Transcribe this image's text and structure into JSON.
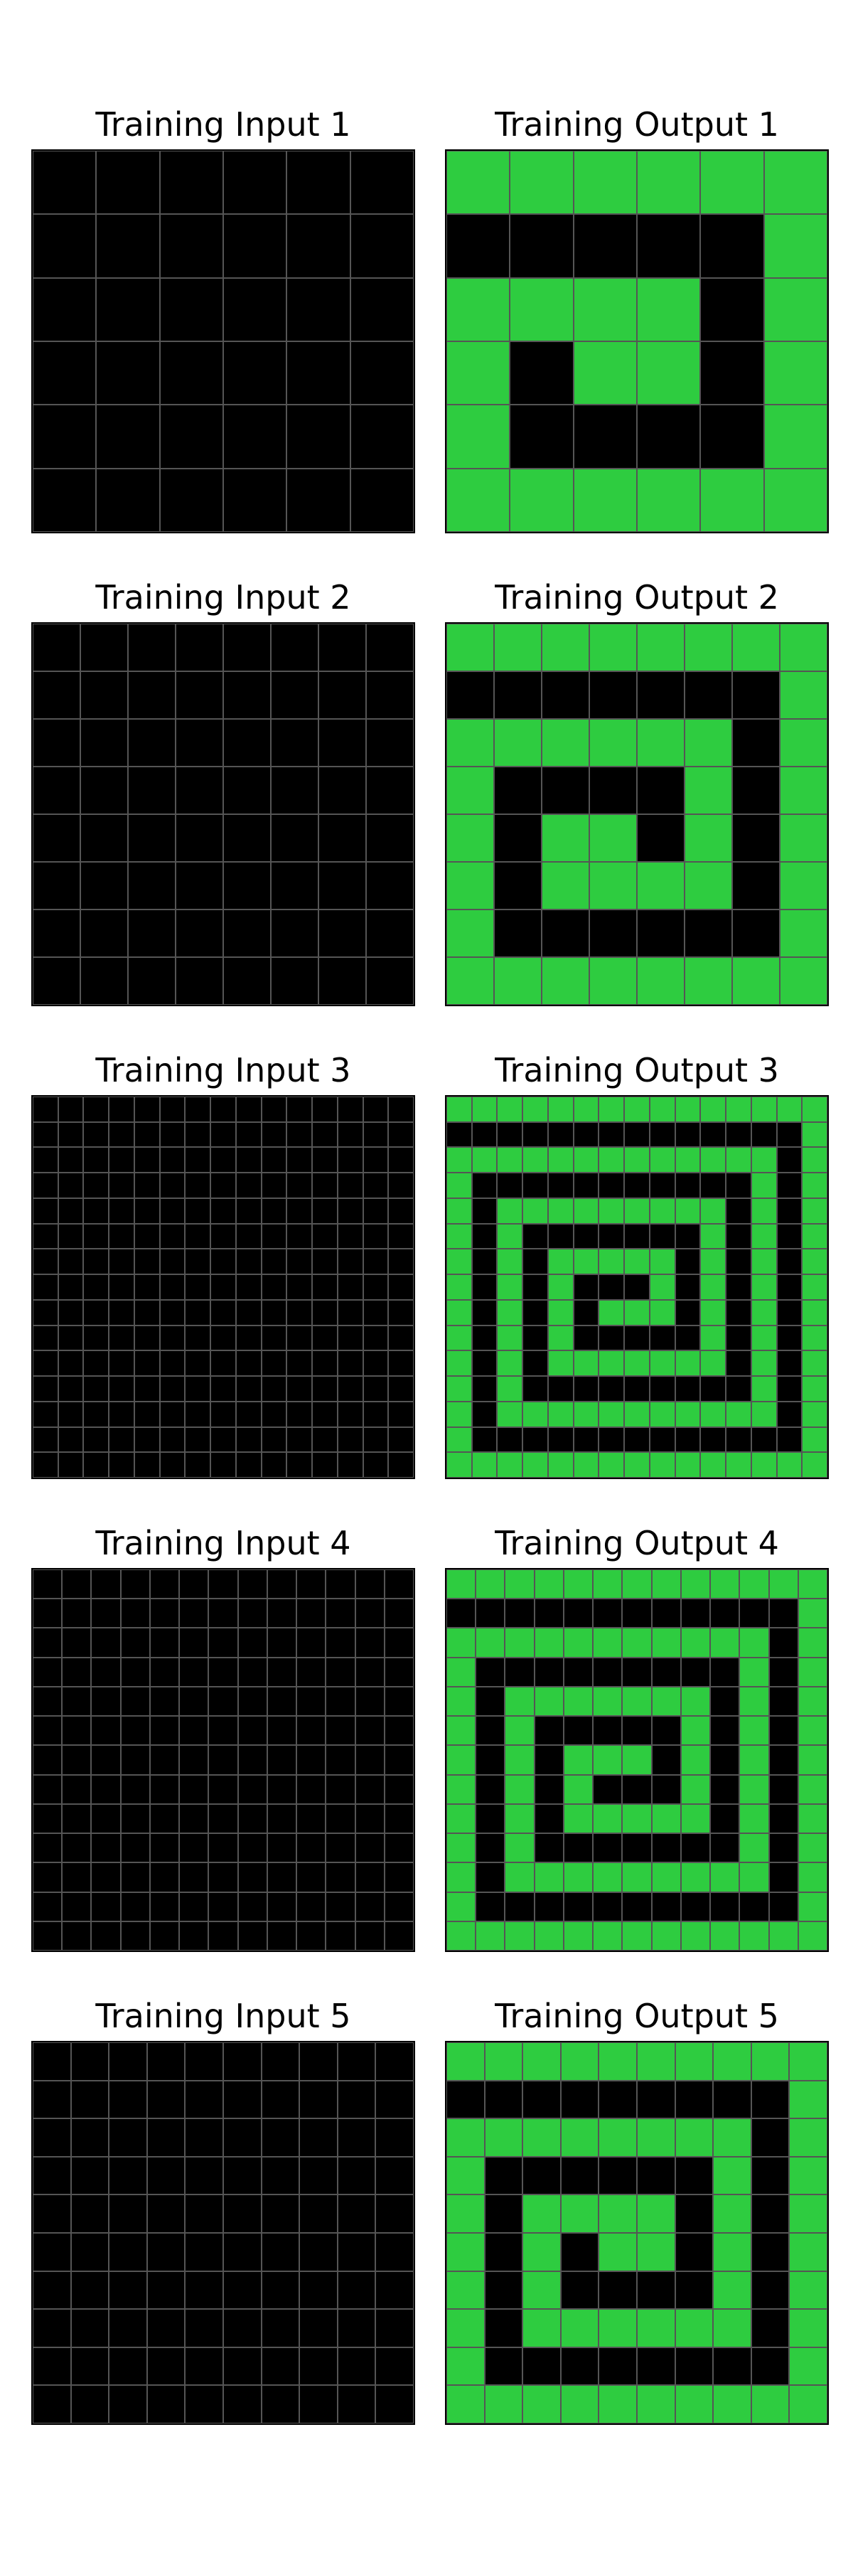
{
  "palette": {
    "0": "#000000",
    "3": "#2ECC40",
    "grid_line": "#555555",
    "frame": "#000000"
  },
  "pairs": [
    {
      "input_title": "Training Input 1",
      "output_title": "Training Output 1",
      "input": [
        [
          0,
          0,
          0,
          0,
          0,
          0
        ],
        [
          0,
          0,
          0,
          0,
          0,
          0
        ],
        [
          0,
          0,
          0,
          0,
          0,
          0
        ],
        [
          0,
          0,
          0,
          0,
          0,
          0
        ],
        [
          0,
          0,
          0,
          0,
          0,
          0
        ],
        [
          0,
          0,
          0,
          0,
          0,
          0
        ]
      ],
      "output": [
        [
          3,
          3,
          3,
          3,
          3,
          3
        ],
        [
          0,
          0,
          0,
          0,
          0,
          3
        ],
        [
          3,
          3,
          3,
          3,
          0,
          3
        ],
        [
          3,
          0,
          3,
          3,
          0,
          3
        ],
        [
          3,
          0,
          0,
          0,
          0,
          3
        ],
        [
          3,
          3,
          3,
          3,
          3,
          3
        ]
      ]
    },
    {
      "input_title": "Training Input 2",
      "output_title": "Training Output 2",
      "input": [
        [
          0,
          0,
          0,
          0,
          0,
          0,
          0,
          0
        ],
        [
          0,
          0,
          0,
          0,
          0,
          0,
          0,
          0
        ],
        [
          0,
          0,
          0,
          0,
          0,
          0,
          0,
          0
        ],
        [
          0,
          0,
          0,
          0,
          0,
          0,
          0,
          0
        ],
        [
          0,
          0,
          0,
          0,
          0,
          0,
          0,
          0
        ],
        [
          0,
          0,
          0,
          0,
          0,
          0,
          0,
          0
        ],
        [
          0,
          0,
          0,
          0,
          0,
          0,
          0,
          0
        ],
        [
          0,
          0,
          0,
          0,
          0,
          0,
          0,
          0
        ]
      ],
      "output": [
        [
          3,
          3,
          3,
          3,
          3,
          3,
          3,
          3
        ],
        [
          0,
          0,
          0,
          0,
          0,
          0,
          0,
          3
        ],
        [
          3,
          3,
          3,
          3,
          3,
          3,
          0,
          3
        ],
        [
          3,
          0,
          0,
          0,
          0,
          3,
          0,
          3
        ],
        [
          3,
          0,
          3,
          3,
          0,
          3,
          0,
          3
        ],
        [
          3,
          0,
          3,
          3,
          3,
          3,
          0,
          3
        ],
        [
          3,
          0,
          0,
          0,
          0,
          0,
          0,
          3
        ],
        [
          3,
          3,
          3,
          3,
          3,
          3,
          3,
          3
        ]
      ]
    },
    {
      "input_title": "Training Input 3",
      "output_title": "Training Output 3",
      "input": [
        [
          0,
          0,
          0,
          0,
          0,
          0,
          0,
          0,
          0,
          0,
          0,
          0,
          0,
          0,
          0
        ],
        [
          0,
          0,
          0,
          0,
          0,
          0,
          0,
          0,
          0,
          0,
          0,
          0,
          0,
          0,
          0
        ],
        [
          0,
          0,
          0,
          0,
          0,
          0,
          0,
          0,
          0,
          0,
          0,
          0,
          0,
          0,
          0
        ],
        [
          0,
          0,
          0,
          0,
          0,
          0,
          0,
          0,
          0,
          0,
          0,
          0,
          0,
          0,
          0
        ],
        [
          0,
          0,
          0,
          0,
          0,
          0,
          0,
          0,
          0,
          0,
          0,
          0,
          0,
          0,
          0
        ],
        [
          0,
          0,
          0,
          0,
          0,
          0,
          0,
          0,
          0,
          0,
          0,
          0,
          0,
          0,
          0
        ],
        [
          0,
          0,
          0,
          0,
          0,
          0,
          0,
          0,
          0,
          0,
          0,
          0,
          0,
          0,
          0
        ],
        [
          0,
          0,
          0,
          0,
          0,
          0,
          0,
          0,
          0,
          0,
          0,
          0,
          0,
          0,
          0
        ],
        [
          0,
          0,
          0,
          0,
          0,
          0,
          0,
          0,
          0,
          0,
          0,
          0,
          0,
          0,
          0
        ],
        [
          0,
          0,
          0,
          0,
          0,
          0,
          0,
          0,
          0,
          0,
          0,
          0,
          0,
          0,
          0
        ],
        [
          0,
          0,
          0,
          0,
          0,
          0,
          0,
          0,
          0,
          0,
          0,
          0,
          0,
          0,
          0
        ],
        [
          0,
          0,
          0,
          0,
          0,
          0,
          0,
          0,
          0,
          0,
          0,
          0,
          0,
          0,
          0
        ],
        [
          0,
          0,
          0,
          0,
          0,
          0,
          0,
          0,
          0,
          0,
          0,
          0,
          0,
          0,
          0
        ],
        [
          0,
          0,
          0,
          0,
          0,
          0,
          0,
          0,
          0,
          0,
          0,
          0,
          0,
          0,
          0
        ],
        [
          0,
          0,
          0,
          0,
          0,
          0,
          0,
          0,
          0,
          0,
          0,
          0,
          0,
          0,
          0
        ]
      ],
      "output": [
        [
          3,
          3,
          3,
          3,
          3,
          3,
          3,
          3,
          3,
          3,
          3,
          3,
          3,
          3,
          3
        ],
        [
          0,
          0,
          0,
          0,
          0,
          0,
          0,
          0,
          0,
          0,
          0,
          0,
          0,
          0,
          3
        ],
        [
          3,
          3,
          3,
          3,
          3,
          3,
          3,
          3,
          3,
          3,
          3,
          3,
          3,
          0,
          3
        ],
        [
          3,
          0,
          0,
          0,
          0,
          0,
          0,
          0,
          0,
          0,
          0,
          0,
          3,
          0,
          3
        ],
        [
          3,
          0,
          3,
          3,
          3,
          3,
          3,
          3,
          3,
          3,
          3,
          0,
          3,
          0,
          3
        ],
        [
          3,
          0,
          3,
          0,
          0,
          0,
          0,
          0,
          0,
          0,
          3,
          0,
          3,
          0,
          3
        ],
        [
          3,
          0,
          3,
          0,
          3,
          3,
          3,
          3,
          3,
          0,
          3,
          0,
          3,
          0,
          3
        ],
        [
          3,
          0,
          3,
          0,
          3,
          0,
          0,
          0,
          3,
          0,
          3,
          0,
          3,
          0,
          3
        ],
        [
          3,
          0,
          3,
          0,
          3,
          0,
          3,
          3,
          3,
          0,
          3,
          0,
          3,
          0,
          3
        ],
        [
          3,
          0,
          3,
          0,
          3,
          0,
          0,
          0,
          0,
          0,
          3,
          0,
          3,
          0,
          3
        ],
        [
          3,
          0,
          3,
          0,
          3,
          3,
          3,
          3,
          3,
          3,
          3,
          0,
          3,
          0,
          3
        ],
        [
          3,
          0,
          3,
          0,
          0,
          0,
          0,
          0,
          0,
          0,
          0,
          0,
          3,
          0,
          3
        ],
        [
          3,
          0,
          3,
          3,
          3,
          3,
          3,
          3,
          3,
          3,
          3,
          3,
          3,
          0,
          3
        ],
        [
          3,
          0,
          0,
          0,
          0,
          0,
          0,
          0,
          0,
          0,
          0,
          0,
          0,
          0,
          3
        ],
        [
          3,
          3,
          3,
          3,
          3,
          3,
          3,
          3,
          3,
          3,
          3,
          3,
          3,
          3,
          3
        ]
      ]
    },
    {
      "input_title": "Training Input 4",
      "output_title": "Training Output 4",
      "input": [
        [
          0,
          0,
          0,
          0,
          0,
          0,
          0,
          0,
          0,
          0,
          0,
          0,
          0
        ],
        [
          0,
          0,
          0,
          0,
          0,
          0,
          0,
          0,
          0,
          0,
          0,
          0,
          0
        ],
        [
          0,
          0,
          0,
          0,
          0,
          0,
          0,
          0,
          0,
          0,
          0,
          0,
          0
        ],
        [
          0,
          0,
          0,
          0,
          0,
          0,
          0,
          0,
          0,
          0,
          0,
          0,
          0
        ],
        [
          0,
          0,
          0,
          0,
          0,
          0,
          0,
          0,
          0,
          0,
          0,
          0,
          0
        ],
        [
          0,
          0,
          0,
          0,
          0,
          0,
          0,
          0,
          0,
          0,
          0,
          0,
          0
        ],
        [
          0,
          0,
          0,
          0,
          0,
          0,
          0,
          0,
          0,
          0,
          0,
          0,
          0
        ],
        [
          0,
          0,
          0,
          0,
          0,
          0,
          0,
          0,
          0,
          0,
          0,
          0,
          0
        ],
        [
          0,
          0,
          0,
          0,
          0,
          0,
          0,
          0,
          0,
          0,
          0,
          0,
          0
        ],
        [
          0,
          0,
          0,
          0,
          0,
          0,
          0,
          0,
          0,
          0,
          0,
          0,
          0
        ],
        [
          0,
          0,
          0,
          0,
          0,
          0,
          0,
          0,
          0,
          0,
          0,
          0,
          0
        ],
        [
          0,
          0,
          0,
          0,
          0,
          0,
          0,
          0,
          0,
          0,
          0,
          0,
          0
        ],
        [
          0,
          0,
          0,
          0,
          0,
          0,
          0,
          0,
          0,
          0,
          0,
          0,
          0
        ]
      ],
      "output": [
        [
          3,
          3,
          3,
          3,
          3,
          3,
          3,
          3,
          3,
          3,
          3,
          3,
          3
        ],
        [
          0,
          0,
          0,
          0,
          0,
          0,
          0,
          0,
          0,
          0,
          0,
          0,
          3
        ],
        [
          3,
          3,
          3,
          3,
          3,
          3,
          3,
          3,
          3,
          3,
          3,
          0,
          3
        ],
        [
          3,
          0,
          0,
          0,
          0,
          0,
          0,
          0,
          0,
          0,
          3,
          0,
          3
        ],
        [
          3,
          0,
          3,
          3,
          3,
          3,
          3,
          3,
          3,
          0,
          3,
          0,
          3
        ],
        [
          3,
          0,
          3,
          0,
          0,
          0,
          0,
          0,
          3,
          0,
          3,
          0,
          3
        ],
        [
          3,
          0,
          3,
          0,
          3,
          3,
          3,
          0,
          3,
          0,
          3,
          0,
          3
        ],
        [
          3,
          0,
          3,
          0,
          3,
          0,
          0,
          0,
          3,
          0,
          3,
          0,
          3
        ],
        [
          3,
          0,
          3,
          0,
          3,
          3,
          3,
          3,
          3,
          0,
          3,
          0,
          3
        ],
        [
          3,
          0,
          3,
          0,
          0,
          0,
          0,
          0,
          0,
          0,
          3,
          0,
          3
        ],
        [
          3,
          0,
          3,
          3,
          3,
          3,
          3,
          3,
          3,
          3,
          3,
          0,
          3
        ],
        [
          3,
          0,
          0,
          0,
          0,
          0,
          0,
          0,
          0,
          0,
          0,
          0,
          3
        ],
        [
          3,
          3,
          3,
          3,
          3,
          3,
          3,
          3,
          3,
          3,
          3,
          3,
          3
        ]
      ]
    },
    {
      "input_title": "Training Input 5",
      "output_title": "Training Output 5",
      "input": [
        [
          0,
          0,
          0,
          0,
          0,
          0,
          0,
          0,
          0,
          0
        ],
        [
          0,
          0,
          0,
          0,
          0,
          0,
          0,
          0,
          0,
          0
        ],
        [
          0,
          0,
          0,
          0,
          0,
          0,
          0,
          0,
          0,
          0
        ],
        [
          0,
          0,
          0,
          0,
          0,
          0,
          0,
          0,
          0,
          0
        ],
        [
          0,
          0,
          0,
          0,
          0,
          0,
          0,
          0,
          0,
          0
        ],
        [
          0,
          0,
          0,
          0,
          0,
          0,
          0,
          0,
          0,
          0
        ],
        [
          0,
          0,
          0,
          0,
          0,
          0,
          0,
          0,
          0,
          0
        ],
        [
          0,
          0,
          0,
          0,
          0,
          0,
          0,
          0,
          0,
          0
        ],
        [
          0,
          0,
          0,
          0,
          0,
          0,
          0,
          0,
          0,
          0
        ],
        [
          0,
          0,
          0,
          0,
          0,
          0,
          0,
          0,
          0,
          0
        ]
      ],
      "output": [
        [
          3,
          3,
          3,
          3,
          3,
          3,
          3,
          3,
          3,
          3
        ],
        [
          0,
          0,
          0,
          0,
          0,
          0,
          0,
          0,
          0,
          3
        ],
        [
          3,
          3,
          3,
          3,
          3,
          3,
          3,
          3,
          0,
          3
        ],
        [
          3,
          0,
          0,
          0,
          0,
          0,
          0,
          3,
          0,
          3
        ],
        [
          3,
          0,
          3,
          3,
          3,
          3,
          0,
          3,
          0,
          3
        ],
        [
          3,
          0,
          3,
          0,
          3,
          3,
          0,
          3,
          0,
          3
        ],
        [
          3,
          0,
          3,
          0,
          0,
          0,
          0,
          3,
          0,
          3
        ],
        [
          3,
          0,
          3,
          3,
          3,
          3,
          3,
          3,
          0,
          3
        ],
        [
          3,
          0,
          0,
          0,
          0,
          0,
          0,
          0,
          0,
          3
        ],
        [
          3,
          3,
          3,
          3,
          3,
          3,
          3,
          3,
          3,
          3
        ]
      ]
    }
  ]
}
